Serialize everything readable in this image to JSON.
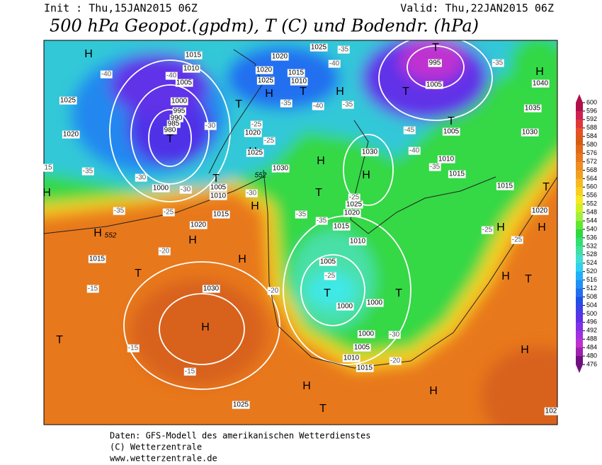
{
  "header": {
    "init": "Init : Thu,15JAN2015 06Z",
    "valid": "Valid: Thu,22JAN2015 06Z",
    "title": "500 hPa Geopot.(gpdm), T (C) und Bodendr. (hPa)"
  },
  "map": {
    "labels": [
      "H",
      "H",
      "H",
      "H",
      "H",
      "H",
      "H",
      "H",
      "H",
      "H",
      "H",
      "H",
      "H",
      "H",
      "H",
      "H",
      "H",
      "H",
      "H",
      "H",
      "T",
      "T",
      "T",
      "T",
      "T",
      "T",
      "T",
      "T",
      "T",
      "T",
      "T",
      "T",
      "T",
      "T",
      "T",
      "1015",
      "1010",
      "1005",
      "1000",
      "995",
      "990",
      "985",
      "980",
      "1020",
      "1025",
      "1020",
      "1025",
      "1015",
      "1010",
      "995",
      "1005",
      "1040",
      "1035",
      "1030",
      "1005",
      "1010",
      "1015",
      "1015",
      "1020",
      "1025",
      "1020",
      "1000",
      "1005",
      "1010",
      "1015",
      "1020",
      "1015",
      "1030",
      "1030",
      "1025",
      "1020",
      "1015",
      "1010",
      "1005",
      "1000",
      "1000",
      "1000",
      "1005",
      "1010",
      "1015",
      "1025",
      "1020",
      "1025",
      "1030",
      "102",
      "-40",
      "-40",
      "-35",
      "-40",
      "-35",
      "-40",
      "-35",
      "-30",
      "-25",
      "-25",
      "-45",
      "-40",
      "-35",
      "-35",
      "-35",
      "-30",
      "-30",
      "-35",
      "-25",
      "-30",
      "-35",
      "-35",
      "-25",
      "-25",
      "-25",
      "-25",
      "-20",
      "-15",
      "-20",
      "-30",
      "-20",
      "-15",
      "-15",
      "15",
      "552",
      "552"
    ]
  },
  "colorbar": {
    "ticks": [
      600,
      596,
      592,
      588,
      584,
      580,
      576,
      572,
      568,
      564,
      560,
      556,
      552,
      548,
      544,
      540,
      536,
      532,
      528,
      524,
      520,
      516,
      512,
      508,
      504,
      500,
      496,
      492,
      488,
      484,
      480,
      476
    ],
    "colors": [
      "#b0104a",
      "#d02050",
      "#e03838",
      "#e85028",
      "#d85c10",
      "#e06a18",
      "#e87820",
      "#f08c20",
      "#f0a020",
      "#f8b820",
      "#f8d020",
      "#f8e820",
      "#d0f020",
      "#a0f040",
      "#60e830",
      "#30d840",
      "#30e070",
      "#40e0a0",
      "#40e0d0",
      "#30d0f0",
      "#20b0f8",
      "#2090f8",
      "#2070f0",
      "#2050e8",
      "#4040e8",
      "#6030e8",
      "#8030e8",
      "#a030e0",
      "#c030d0",
      "#a020b0",
      "#701080"
    ]
  },
  "footer": [
    "Daten: GFS-Modell des amerikanischen Wetterdienstes",
    "(C) Wetterzentrale",
    "www.wetterzentrale.de"
  ]
}
